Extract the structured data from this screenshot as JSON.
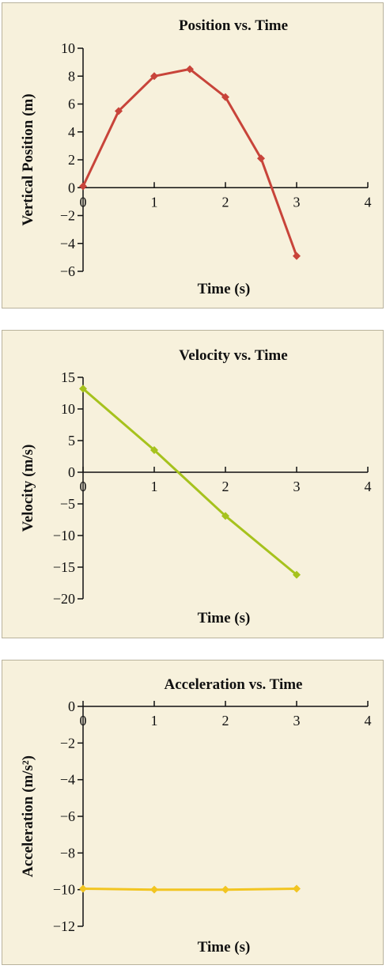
{
  "chart_data": [
    {
      "type": "line",
      "title": "Position vs. Time",
      "xlabel": "Time (s)",
      "ylabel": "Vertical Position (m)",
      "xlim": [
        0,
        4
      ],
      "ylim": [
        -6,
        10
      ],
      "xticks": [
        0,
        1,
        2,
        3,
        4
      ],
      "yticks": [
        -6,
        -4,
        -2,
        0,
        2,
        4,
        6,
        8,
        10
      ],
      "color": "#c8443a",
      "series": [
        {
          "x": [
            0,
            0.5,
            1,
            1.5,
            2,
            2.5,
            3
          ],
          "y": [
            0.1,
            5.5,
            8.0,
            8.5,
            6.5,
            2.1,
            -4.9
          ]
        }
      ]
    },
    {
      "type": "line",
      "title": "Velocity vs. Time",
      "xlabel": "Time (s)",
      "ylabel": "Velocity (m/s)",
      "xlim": [
        0,
        4
      ],
      "ylim": [
        -20,
        15
      ],
      "xticks": [
        0,
        1,
        2,
        3,
        4
      ],
      "yticks": [
        -20,
        -15,
        -10,
        -5,
        0,
        5,
        10,
        15
      ],
      "color": "#a6c21d",
      "series": [
        {
          "x": [
            0,
            1,
            2,
            3
          ],
          "y": [
            13.2,
            3.5,
            -6.9,
            -16.2
          ]
        }
      ]
    },
    {
      "type": "line",
      "title": "Acceleration vs. Time",
      "xlabel": "Time (s)",
      "ylabel": "Acceleration (m/s²)",
      "xlim": [
        0,
        4
      ],
      "ylim": [
        -12,
        0
      ],
      "xticks": [
        0,
        1,
        2,
        3,
        4
      ],
      "yticks": [
        -12,
        -10,
        -8,
        -6,
        -4,
        -2,
        0
      ],
      "color": "#f2c521",
      "series": [
        {
          "x": [
            0,
            1,
            2,
            3
          ],
          "y": [
            -9.95,
            -10.0,
            -10.0,
            -9.95
          ]
        }
      ]
    }
  ]
}
